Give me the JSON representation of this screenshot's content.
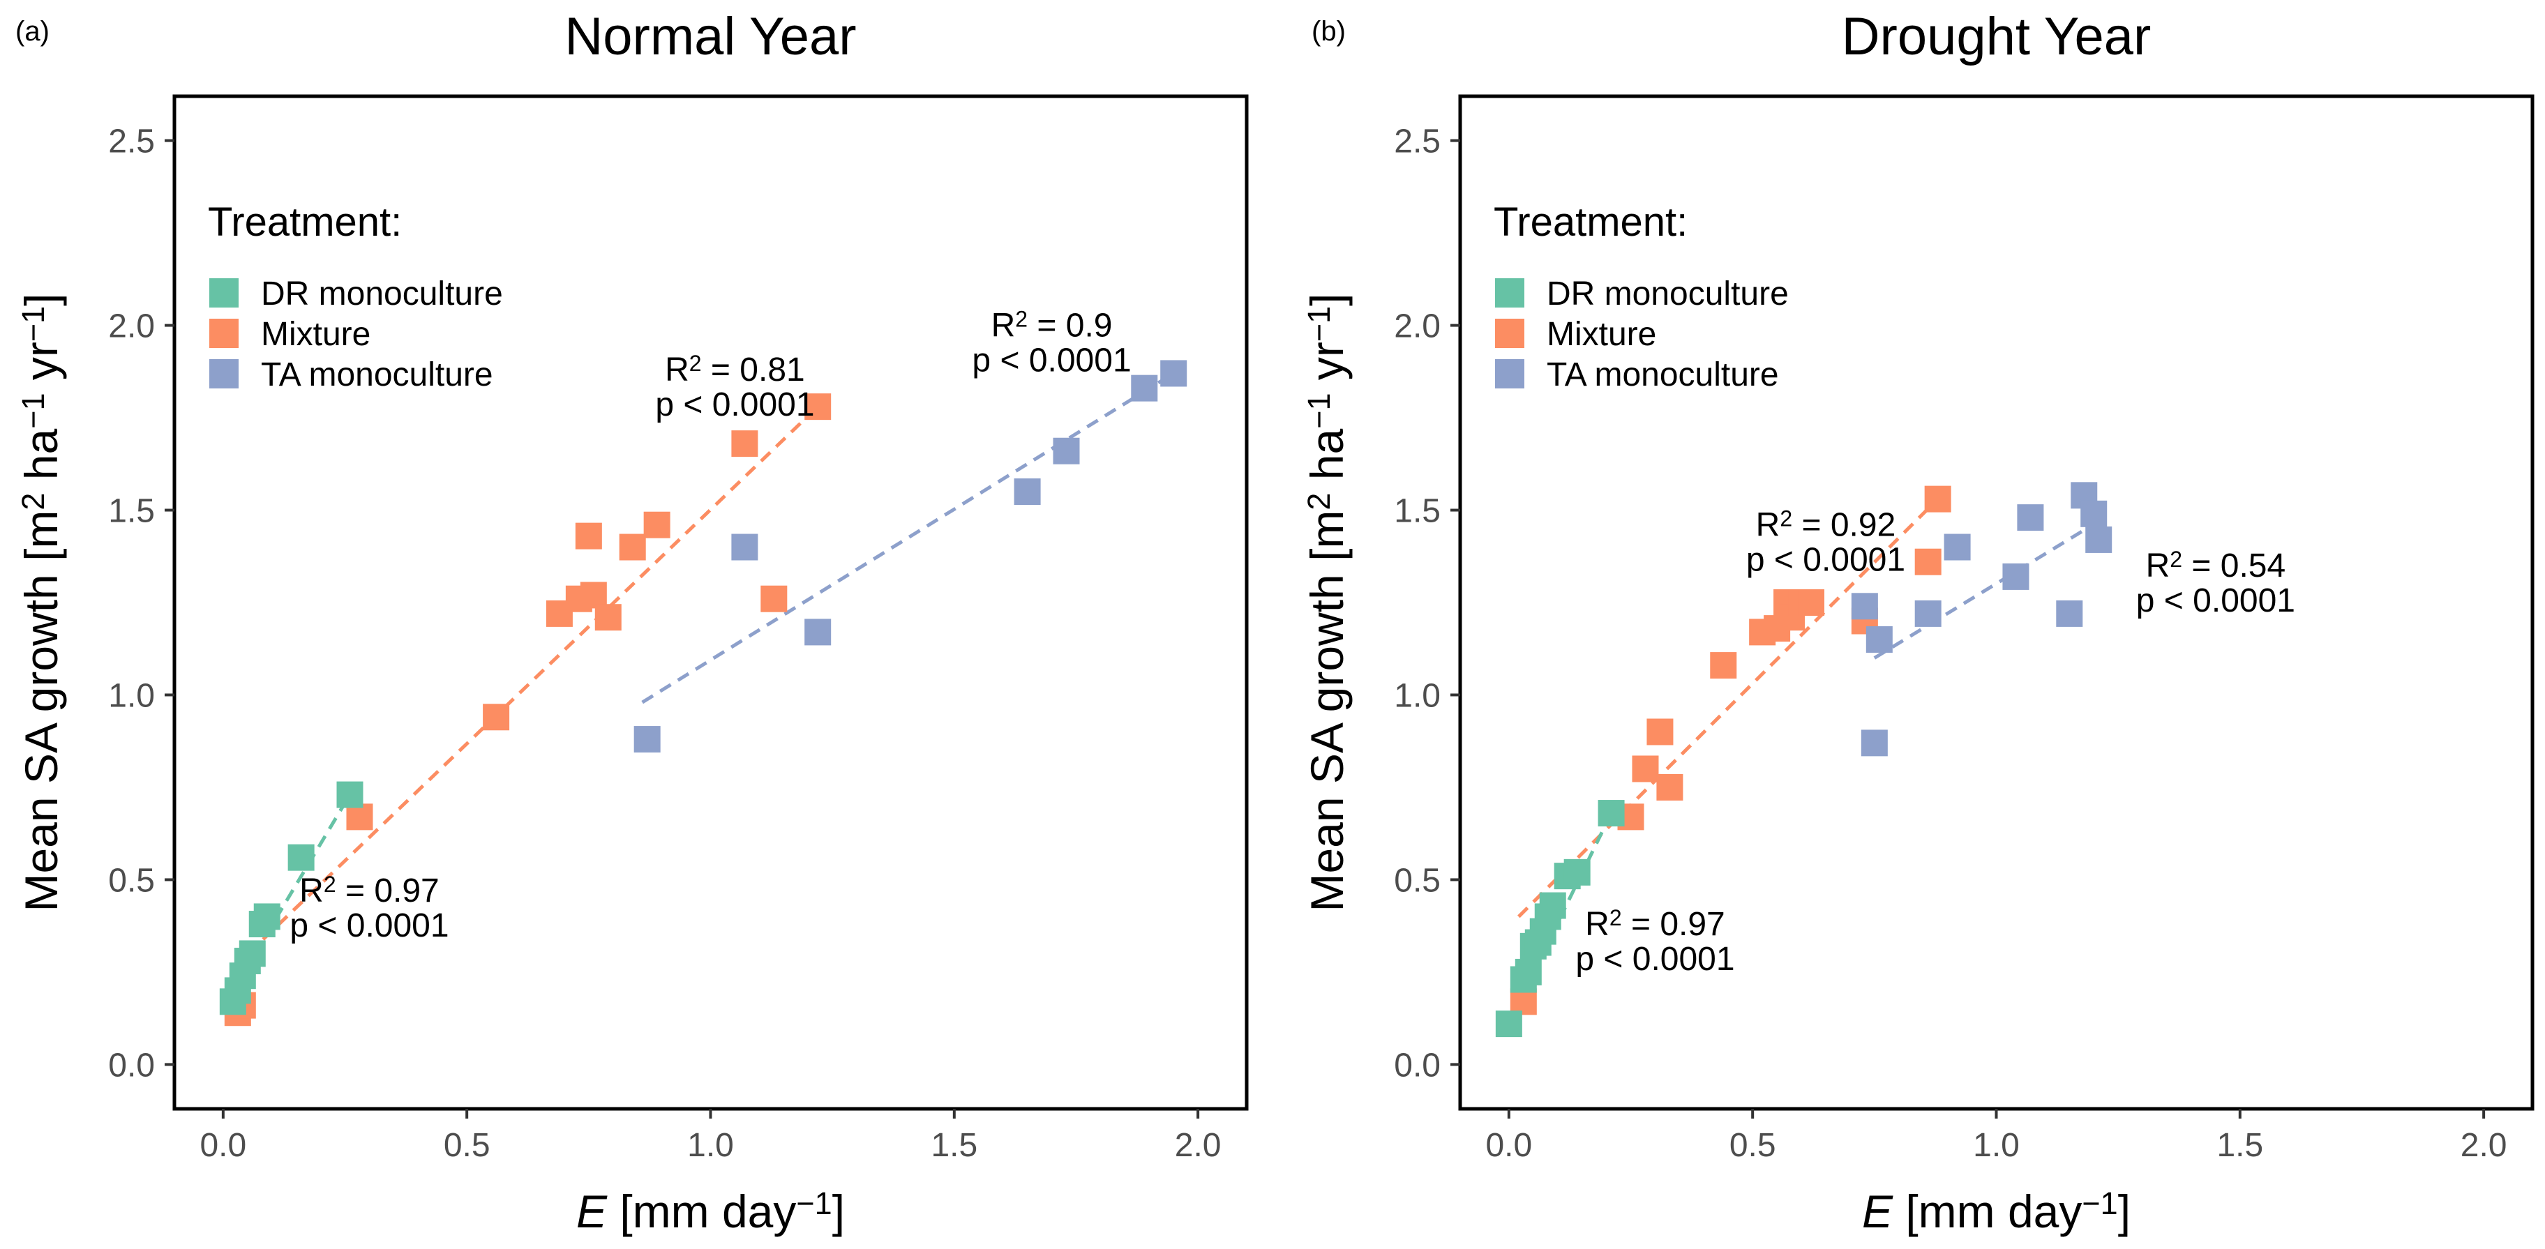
{
  "chart_data": [
    {
      "type": "scatter",
      "panel_label": "(a)",
      "title": "Normal Year",
      "xlabel": "E [mm day⁻¹]",
      "ylabel": "Mean SA growth [m² ha⁻¹ yr⁻¹]",
      "xlim": [
        -0.1,
        2.1
      ],
      "ylim": [
        -0.12,
        2.62
      ],
      "x_ticks": [
        0.0,
        0.5,
        1.0,
        1.5,
        2.0
      ],
      "x_tick_labels": [
        "0.0",
        "0.5",
        "1.0",
        "1.5",
        "2.0"
      ],
      "y_ticks": [
        0.0,
        0.5,
        1.0,
        1.5,
        2.0,
        2.5
      ],
      "y_tick_labels": [
        "0.0",
        "0.5",
        "1.0",
        "1.5",
        "2.0",
        "2.5"
      ],
      "legend": {
        "title": "Treatment:",
        "position": "top-left",
        "entries": [
          {
            "name": "DR monoculture",
            "color": "#66C2A5"
          },
          {
            "name": "Mixture",
            "color": "#FC8D62"
          },
          {
            "name": "TA monoculture",
            "color": "#8DA0CB"
          }
        ]
      },
      "series": [
        {
          "name": "Mixture",
          "color": "#FC8D62",
          "points": [
            [
              0.03,
              0.14
            ],
            [
              0.04,
              0.16
            ],
            [
              0.28,
              0.67
            ],
            [
              0.56,
              0.94
            ],
            [
              0.69,
              1.22
            ],
            [
              0.73,
              1.26
            ],
            [
              0.75,
              1.43
            ],
            [
              0.76,
              1.27
            ],
            [
              0.79,
              1.21
            ],
            [
              0.84,
              1.4
            ],
            [
              0.89,
              1.46
            ],
            [
              1.07,
              1.68
            ],
            [
              1.13,
              1.26
            ],
            [
              1.22,
              1.78
            ]
          ],
          "fit": [
            [
              0.02,
              0.26
            ],
            [
              1.22,
              1.78
            ]
          ]
        },
        {
          "name": "TA monoculture",
          "color": "#8DA0CB",
          "points": [
            [
              0.87,
              0.88
            ],
            [
              1.07,
              1.4
            ],
            [
              1.22,
              1.17
            ],
            [
              1.65,
              1.55
            ],
            [
              1.73,
              1.66
            ],
            [
              1.89,
              1.83
            ],
            [
              1.95,
              1.87
            ]
          ],
          "fit": [
            [
              0.86,
              0.98
            ],
            [
              1.95,
              1.87
            ]
          ]
        },
        {
          "name": "DR monoculture",
          "color": "#66C2A5",
          "points": [
            [
              0.02,
              0.17
            ],
            [
              0.03,
              0.2
            ],
            [
              0.04,
              0.24
            ],
            [
              0.05,
              0.28
            ],
            [
              0.06,
              0.3
            ],
            [
              0.08,
              0.38
            ],
            [
              0.09,
              0.4
            ],
            [
              0.16,
              0.56
            ],
            [
              0.26,
              0.73
            ]
          ],
          "fit": [
            [
              0.02,
              0.2
            ],
            [
              0.26,
              0.73
            ]
          ]
        }
      ],
      "annotations": [
        {
          "series": "Mixture",
          "r2_label": "R",
          "r2_sup": "2",
          "r2_value": " = 0.81",
          "p_text": "p < 0.0001",
          "x": 1.05,
          "y": 1.85
        },
        {
          "series": "TA monoculture",
          "r2_label": "R",
          "r2_sup": "2",
          "r2_value": " = 0.9",
          "p_text": "p < 0.0001",
          "x": 1.7,
          "y": 1.97
        },
        {
          "series": "DR monoculture",
          "r2_label": "R",
          "r2_sup": "2",
          "r2_value": " = 0.97",
          "p_text": "p < 0.0001",
          "x": 0.3,
          "y": 0.44
        }
      ]
    },
    {
      "type": "scatter",
      "panel_label": "(b)",
      "title": "Drought Year",
      "xlabel": "E [mm day⁻¹]",
      "ylabel": "Mean SA growth [m² ha⁻¹ yr⁻¹]",
      "xlim": [
        -0.1,
        2.1
      ],
      "ylim": [
        -0.12,
        2.62
      ],
      "x_ticks": [
        0.0,
        0.5,
        1.0,
        1.5,
        2.0
      ],
      "x_tick_labels": [
        "0.0",
        "0.5",
        "1.0",
        "1.5",
        "2.0"
      ],
      "y_ticks": [
        0.0,
        0.5,
        1.0,
        1.5,
        2.0,
        2.5
      ],
      "y_tick_labels": [
        "0.0",
        "0.5",
        "1.0",
        "1.5",
        "2.0",
        "2.5"
      ],
      "legend": {
        "title": "Treatment:",
        "position": "top-left",
        "entries": [
          {
            "name": "DR monoculture",
            "color": "#66C2A5"
          },
          {
            "name": "Mixture",
            "color": "#FC8D62"
          },
          {
            "name": "TA monoculture",
            "color": "#8DA0CB"
          }
        ]
      },
      "series": [
        {
          "name": "Mixture",
          "color": "#FC8D62",
          "points": [
            [
              0.03,
              0.17
            ],
            [
              0.25,
              0.67
            ],
            [
              0.28,
              0.8
            ],
            [
              0.31,
              0.9
            ],
            [
              0.33,
              0.75
            ],
            [
              0.44,
              1.08
            ],
            [
              0.52,
              1.17
            ],
            [
              0.55,
              1.18
            ],
            [
              0.57,
              1.25
            ],
            [
              0.58,
              1.21
            ],
            [
              0.6,
              1.25
            ],
            [
              0.62,
              1.25
            ],
            [
              0.73,
              1.2
            ],
            [
              0.86,
              1.36
            ],
            [
              0.88,
              1.53
            ]
          ],
          "fit": [
            [
              0.02,
              0.4
            ],
            [
              0.88,
              1.53
            ]
          ]
        },
        {
          "name": "TA monoculture",
          "color": "#8DA0CB",
          "points": [
            [
              0.73,
              1.24
            ],
            [
              0.75,
              0.87
            ],
            [
              0.76,
              1.15
            ],
            [
              0.86,
              1.22
            ],
            [
              0.92,
              1.4
            ],
            [
              1.04,
              1.32
            ],
            [
              1.07,
              1.48
            ],
            [
              1.15,
              1.22
            ],
            [
              1.18,
              1.54
            ],
            [
              1.2,
              1.49
            ],
            [
              1.21,
              1.42
            ]
          ],
          "fit": [
            [
              0.75,
              1.1
            ],
            [
              1.21,
              1.47
            ]
          ]
        },
        {
          "name": "DR monoculture",
          "color": "#66C2A5",
          "points": [
            [
              0.0,
              0.11
            ],
            [
              0.03,
              0.23
            ],
            [
              0.04,
              0.25
            ],
            [
              0.05,
              0.32
            ],
            [
              0.06,
              0.33
            ],
            [
              0.07,
              0.36
            ],
            [
              0.08,
              0.4
            ],
            [
              0.09,
              0.43
            ],
            [
              0.12,
              0.51
            ],
            [
              0.14,
              0.52
            ],
            [
              0.21,
              0.68
            ]
          ],
          "fit": [
            [
              0.01,
              0.14
            ],
            [
              0.21,
              0.68
            ]
          ]
        }
      ],
      "annotations": [
        {
          "series": "Mixture",
          "r2_label": "R",
          "r2_sup": "2",
          "r2_value": " = 0.92",
          "p_text": "p < 0.0001",
          "x": 0.65,
          "y": 1.43
        },
        {
          "series": "TA monoculture",
          "r2_label": "R",
          "r2_sup": "2",
          "r2_value": " = 0.54",
          "p_text": "p < 0.0001",
          "x": 1.45,
          "y": 1.32
        },
        {
          "series": "DR monoculture",
          "r2_label": "R",
          "r2_sup": "2",
          "r2_value": " = 0.97",
          "p_text": "p < 0.0001",
          "x": 0.3,
          "y": 0.35
        }
      ]
    }
  ]
}
